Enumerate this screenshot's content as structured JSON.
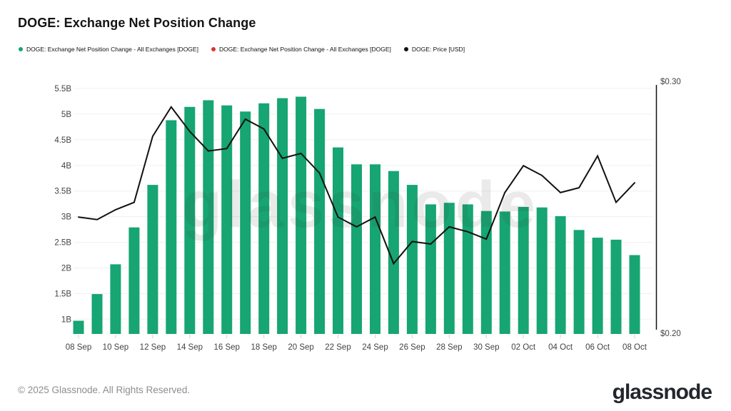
{
  "header": {
    "title": "DOGE: Exchange Net Position Change"
  },
  "legend": [
    {
      "label": "DOGE: Exchange Net Position Change - All Exchanges [DOGE]",
      "color": "#16a573"
    },
    {
      "label": "DOGE: Exchange Net Position Change - All Exchanges [DOGE]",
      "color": "#e03131"
    },
    {
      "label": "DOGE: Price [USD]",
      "color": "#111111"
    }
  ],
  "watermark": "glassnode",
  "footer": {
    "copyright": "© 2025 Glassnode. All Rights Reserved.",
    "logo": "glassnode"
  },
  "chart_data": {
    "type": "bar+line",
    "title": "DOGE: Exchange Net Position Change",
    "dates": [
      "08 Sep",
      "09 Sep",
      "10 Sep",
      "11 Sep",
      "12 Sep",
      "13 Sep",
      "14 Sep",
      "15 Sep",
      "16 Sep",
      "17 Sep",
      "18 Sep",
      "19 Sep",
      "20 Sep",
      "21 Sep",
      "22 Sep",
      "23 Sep",
      "24 Sep",
      "25 Sep",
      "26 Sep",
      "27 Sep",
      "28 Sep",
      "29 Sep",
      "30 Sep",
      "01 Oct",
      "02 Oct",
      "03 Oct",
      "04 Oct",
      "05 Oct",
      "06 Oct",
      "07 Oct",
      "08 Oct"
    ],
    "xtick_every": 2,
    "grid": "horizontal",
    "series": [
      {
        "name": "DOGE: Exchange Net Position Change - All Exchanges [DOGE]",
        "type": "bar",
        "axis": "left",
        "unit": "B DOGE",
        "color": "#16a573",
        "values": [
          0.97,
          1.49,
          2.07,
          2.79,
          3.62,
          4.88,
          5.14,
          5.27,
          5.17,
          5.05,
          5.21,
          5.31,
          5.34,
          5.1,
          4.35,
          4.02,
          4.02,
          3.89,
          3.62,
          3.24,
          3.27,
          3.24,
          3.11,
          3.1,
          3.19,
          3.18,
          3.01,
          2.74,
          2.59,
          2.55,
          2.25
        ]
      },
      {
        "name": "DOGE: Price [USD]",
        "type": "line",
        "axis": "right",
        "unit": "USD",
        "color": "#111111",
        "values": [
          0.246,
          0.245,
          0.249,
          0.252,
          0.279,
          0.291,
          0.281,
          0.273,
          0.274,
          0.286,
          0.282,
          0.27,
          0.272,
          0.264,
          0.246,
          0.242,
          0.246,
          0.227,
          0.236,
          0.235,
          0.242,
          0.24,
          0.237,
          0.256,
          0.267,
          0.263,
          0.256,
          0.258,
          0.271,
          0.252,
          0.26
        ]
      }
    ],
    "left_axis": {
      "tick_labels": [
        "5.5B",
        "5B",
        "4.5B",
        "4B",
        "3.5B",
        "3B",
        "2.5B",
        "2B",
        "1.5B",
        "1B"
      ],
      "tick_values": [
        5.5,
        5,
        4.5,
        4,
        3.5,
        3,
        2.5,
        2,
        1.5,
        1
      ],
      "range": [
        0.712,
        5.625
      ]
    },
    "right_axis": {
      "tick_labels": [
        "$0.30",
        "$0.20"
      ],
      "tick_values": [
        0.3,
        0.2
      ],
      "range": [
        0.19825,
        0.30117
      ]
    }
  }
}
